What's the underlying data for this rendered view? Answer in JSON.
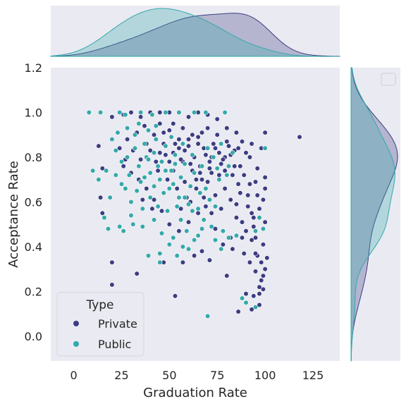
{
  "chart_data": {
    "type": "scatter",
    "title": "",
    "xlabel": "Graduation Rate",
    "ylabel": "Acceptance Rate",
    "xlim": [
      -12,
      139
    ],
    "ylim": [
      -0.11,
      1.2
    ],
    "xticks": [
      "0",
      "25",
      "50",
      "75",
      "100",
      "125"
    ],
    "yticks": [
      "0.0",
      "0.2",
      "0.4",
      "0.6",
      "0.8",
      "1.0",
      "1.2"
    ],
    "grid": false,
    "legend": {
      "title": "Type",
      "placement": "lower-left",
      "entries": [
        "Private",
        "Public"
      ]
    },
    "marginal": {
      "type": "kde",
      "top": "Graduation Rate",
      "right": "Acceptance Rate"
    },
    "colors": {
      "Private": "#3c3d81",
      "Public": "#35a9a9",
      "background": "#eaeaf2"
    },
    "series": [
      {
        "name": "Private",
        "points": [
          [
            118,
            0.89
          ],
          [
            100,
            0.91
          ],
          [
            100,
            0.71
          ],
          [
            100,
            0.66
          ],
          [
            99,
            0.61
          ],
          [
            100,
            0.51
          ],
          [
            99,
            0.41
          ],
          [
            100,
            0.3
          ],
          [
            99,
            0.27
          ],
          [
            98,
            0.25
          ],
          [
            99,
            0.21
          ],
          [
            97,
            0.19
          ],
          [
            97,
            0.14
          ],
          [
            93,
            0.12
          ],
          [
            94,
            0.18
          ],
          [
            90,
            0.19
          ],
          [
            86,
            0.11
          ],
          [
            80,
            0.27
          ],
          [
            96,
            0.36
          ],
          [
            98,
            0.33
          ],
          [
            95,
            0.37
          ],
          [
            93,
            0.43
          ],
          [
            94,
            0.53
          ],
          [
            95,
            0.44
          ],
          [
            90,
            0.47
          ],
          [
            91,
            0.63
          ],
          [
            88,
            0.51
          ],
          [
            97,
            0.57
          ],
          [
            96,
            0.63
          ],
          [
            95,
            0.69
          ],
          [
            96,
            0.75
          ],
          [
            98,
            0.84
          ],
          [
            93,
            0.86
          ],
          [
            92,
            0.8
          ],
          [
            85,
            0.59
          ],
          [
            85,
            0.53
          ],
          [
            82,
            0.44
          ],
          [
            78,
            0.41
          ],
          [
            74,
            0.48
          ],
          [
            71,
            0.34
          ],
          [
            67,
            0.38
          ],
          [
            63,
            0.36
          ],
          [
            57,
            0.33
          ],
          [
            53,
            0.18
          ],
          [
            47,
            0.33
          ],
          [
            33,
            0.28
          ],
          [
            20,
            0.33
          ],
          [
            20,
            0.23
          ],
          [
            14,
            0.62
          ],
          [
            15,
            0.55
          ],
          [
            15,
            0.75
          ],
          [
            13,
            0.85
          ],
          [
            20,
            0.98
          ],
          [
            26,
            0.99
          ],
          [
            30,
            1.0
          ],
          [
            35,
            0.98
          ],
          [
            40,
            1.0
          ],
          [
            45,
            1.0
          ],
          [
            50,
            1.0
          ],
          [
            55,
            1.0
          ],
          [
            60,
            0.98
          ],
          [
            65,
            1.0
          ],
          [
            70,
            0.99
          ],
          [
            75,
            0.97
          ],
          [
            80,
            0.93
          ],
          [
            85,
            0.91
          ],
          [
            88,
            0.87
          ],
          [
            90,
            0.82
          ],
          [
            87,
            0.76
          ],
          [
            83,
            0.72
          ],
          [
            79,
            0.66
          ],
          [
            74,
            0.63
          ],
          [
            69,
            0.58
          ],
          [
            65,
            0.55
          ],
          [
            60,
            0.51
          ],
          [
            55,
            0.47
          ],
          [
            50,
            0.5
          ],
          [
            46,
            0.56
          ],
          [
            42,
            0.61
          ],
          [
            38,
            0.66
          ],
          [
            34,
            0.7
          ],
          [
            30,
            0.73
          ],
          [
            27,
            0.79
          ],
          [
            24,
            0.84
          ],
          [
            28,
            0.88
          ],
          [
            33,
            0.91
          ],
          [
            37,
            0.94
          ],
          [
            42,
            0.9
          ],
          [
            47,
            0.86
          ],
          [
            52,
            0.82
          ],
          [
            57,
            0.78
          ],
          [
            62,
            0.74
          ],
          [
            67,
            0.7
          ],
          [
            72,
            0.73
          ],
          [
            77,
            0.77
          ],
          [
            82,
            0.81
          ],
          [
            86,
            0.84
          ],
          [
            80,
            0.87
          ],
          [
            75,
            0.9
          ],
          [
            70,
            0.93
          ],
          [
            65,
            0.89
          ],
          [
            60,
            0.85
          ],
          [
            55,
            0.88
          ],
          [
            50,
            0.92
          ],
          [
            45,
            0.95
          ],
          [
            40,
            0.83
          ],
          [
            35,
            0.79
          ],
          [
            44,
            0.74
          ],
          [
            49,
            0.7
          ],
          [
            54,
            0.66
          ],
          [
            59,
            0.62
          ],
          [
            64,
            0.66
          ],
          [
            69,
            0.81
          ],
          [
            74,
            0.84
          ],
          [
            79,
            0.8
          ],
          [
            84,
            0.76
          ],
          [
            89,
            0.72
          ],
          [
            92,
            0.68
          ],
          [
            87,
            0.64
          ],
          [
            82,
            0.61
          ],
          [
            77,
            0.57
          ],
          [
            72,
            0.55
          ],
          [
            68,
            0.62
          ],
          [
            63,
            0.8
          ],
          [
            58,
            0.83
          ],
          [
            53,
            0.86
          ],
          [
            48,
            0.81
          ],
          [
            43,
            0.78
          ],
          [
            38,
            0.86
          ],
          [
            31,
            0.83
          ],
          [
            26,
            0.76
          ],
          [
            36,
            0.61
          ],
          [
            41,
            0.57
          ],
          [
            56,
            0.57
          ],
          [
            61,
            0.6
          ],
          [
            66,
            0.76
          ],
          [
            71,
            0.78
          ],
          [
            76,
            0.82
          ],
          [
            81,
            0.85
          ],
          [
            73,
            0.86
          ],
          [
            68,
            0.84
          ],
          [
            62,
            0.9
          ],
          [
            57,
            0.93
          ],
          [
            52,
            0.95
          ],
          [
            47,
            0.91
          ],
          [
            64,
            0.7
          ],
          [
            70,
            0.69
          ],
          [
            76,
            0.72
          ],
          [
            58,
            0.69
          ],
          [
            52,
            0.74
          ],
          [
            56,
            0.79
          ],
          [
            61,
            0.77
          ],
          [
            66,
            0.73
          ],
          [
            71,
            0.75
          ],
          [
            78,
            0.79
          ],
          [
            84,
            0.83
          ],
          [
            60,
            0.88
          ],
          [
            65,
            0.86
          ],
          [
            72,
            0.8
          ],
          [
            55,
            0.84
          ],
          [
            50,
            0.78
          ],
          [
            45,
            0.82
          ],
          [
            67,
            0.91
          ],
          [
            79,
            0.74
          ],
          [
            86,
            0.68
          ],
          [
            91,
            0.58
          ],
          [
            94,
            0.49
          ],
          [
            88,
            0.44
          ],
          [
            83,
            0.39
          ],
          [
            89,
            0.37
          ],
          [
            92,
            0.33
          ],
          [
            97,
            0.22
          ],
          [
            95,
            0.29
          ],
          [
            101,
            0.35
          ],
          [
            93,
            0.55
          ]
        ]
      },
      {
        "name": "Public",
        "points": [
          [
            8,
            1.0
          ],
          [
            14,
            1.0
          ],
          [
            24,
            1.0
          ],
          [
            27,
            0.99
          ],
          [
            35,
            1.0
          ],
          [
            41,
            0.99
          ],
          [
            48,
            1.0
          ],
          [
            55,
            1.0
          ],
          [
            63,
            1.0
          ],
          [
            69,
            1.0
          ],
          [
            79,
            1.0
          ],
          [
            10,
            0.74
          ],
          [
            17,
            0.74
          ],
          [
            13,
            0.7
          ],
          [
            16,
            0.53
          ],
          [
            18,
            0.48
          ],
          [
            24,
            0.49
          ],
          [
            26,
            0.47
          ],
          [
            30,
            0.54
          ],
          [
            36,
            0.49
          ],
          [
            39,
            0.36
          ],
          [
            45,
            0.37
          ],
          [
            45,
            0.33
          ],
          [
            50,
            0.41
          ],
          [
            54,
            0.36
          ],
          [
            60,
            0.39
          ],
          [
            65,
            0.45
          ],
          [
            70,
            0.09
          ],
          [
            88,
            0.17
          ],
          [
            90,
            0.15
          ],
          [
            95,
            0.13
          ],
          [
            97,
            0.53
          ],
          [
            95,
            0.47
          ],
          [
            99,
            0.48
          ],
          [
            100,
            0.84
          ],
          [
            72,
            0.49
          ],
          [
            74,
            0.43
          ],
          [
            78,
            0.47
          ],
          [
            81,
            0.44
          ],
          [
            77,
            0.39
          ],
          [
            85,
            0.45
          ],
          [
            62,
            0.56
          ],
          [
            68,
            0.52
          ],
          [
            56,
            0.52
          ],
          [
            49,
            0.56
          ],
          [
            44,
            0.58
          ],
          [
            40,
            0.62
          ],
          [
            33,
            0.65
          ],
          [
            30,
            0.6
          ],
          [
            27,
            0.66
          ],
          [
            22,
            0.72
          ],
          [
            25,
            0.78
          ],
          [
            22,
            0.83
          ],
          [
            20,
            0.88
          ],
          [
            28,
            0.93
          ],
          [
            32,
            0.9
          ],
          [
            37,
            0.86
          ],
          [
            42,
            0.82
          ],
          [
            46,
            0.78
          ],
          [
            51,
            0.74
          ],
          [
            56,
            0.71
          ],
          [
            61,
            0.67
          ],
          [
            66,
            0.64
          ],
          [
            71,
            0.61
          ],
          [
            76,
            0.7
          ],
          [
            81,
            0.76
          ],
          [
            83,
            0.82
          ],
          [
            77,
            0.86
          ],
          [
            73,
            0.8
          ],
          [
            67,
            0.76
          ],
          [
            63,
            0.73
          ],
          [
            58,
            0.77
          ],
          [
            53,
            0.81
          ],
          [
            48,
            0.85
          ],
          [
            43,
            0.88
          ],
          [
            38,
            0.8
          ],
          [
            34,
            0.76
          ],
          [
            29,
            0.72
          ],
          [
            35,
            0.69
          ],
          [
            40,
            0.73
          ],
          [
            45,
            0.7
          ],
          [
            50,
            0.66
          ],
          [
            55,
            0.62
          ],
          [
            60,
            0.59
          ],
          [
            65,
            0.57
          ],
          [
            58,
            0.62
          ],
          [
            52,
            0.68
          ],
          [
            47,
            0.64
          ],
          [
            42,
            0.67
          ],
          [
            37,
            0.71
          ],
          [
            32,
            0.84
          ],
          [
            48,
            0.74
          ],
          [
            53,
            0.77
          ],
          [
            44,
            0.76
          ],
          [
            39,
            0.79
          ],
          [
            36,
            0.57
          ],
          [
            31,
            0.5
          ],
          [
            42,
            0.52
          ],
          [
            46,
            0.46
          ],
          [
            52,
            0.44
          ],
          [
            57,
            0.4
          ],
          [
            63,
            0.43
          ],
          [
            67,
            0.48
          ],
          [
            59,
            0.47
          ],
          [
            54,
            0.58
          ],
          [
            69,
            0.66
          ],
          [
            74,
            0.58
          ],
          [
            25,
            0.68
          ],
          [
            19,
            0.62
          ],
          [
            28,
            0.8
          ],
          [
            34,
            0.95
          ],
          [
            39,
            0.92
          ],
          [
            51,
            0.89
          ],
          [
            57,
            0.86
          ],
          [
            43,
            0.94
          ],
          [
            23,
            0.91
          ],
          [
            62,
            0.81
          ],
          [
            70,
            0.84
          ],
          [
            75,
            0.75
          ],
          [
            80,
            0.72
          ]
        ]
      }
    ]
  }
}
